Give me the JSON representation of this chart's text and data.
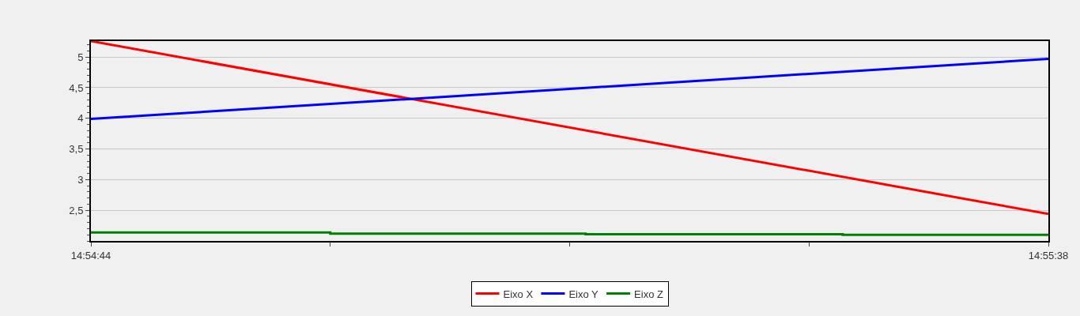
{
  "chart_data": {
    "type": "line",
    "xlim": [
      14.912222,
      14.927222
    ],
    "xticks": [
      {
        "value": 14.912222,
        "label": "14:54:44"
      },
      {
        "value": 14.915972,
        "label": null
      },
      {
        "value": 14.919722,
        "label": null
      },
      {
        "value": 14.923472,
        "label": null
      },
      {
        "value": 14.927222,
        "label": "14:55:38"
      }
    ],
    "ylim": [
      2.0,
      5.26
    ],
    "yticks": [
      {
        "value": 2.5,
        "label": "2,5"
      },
      {
        "value": 3,
        "label": "3"
      },
      {
        "value": 3.5,
        "label": "3,5"
      },
      {
        "value": 4,
        "label": "4"
      },
      {
        "value": 4.5,
        "label": "4,5"
      },
      {
        "value": 5,
        "label": "5"
      }
    ],
    "grid": "y",
    "legend": "bottom",
    "series": [
      {
        "name": "Eixo X",
        "color": "#ff0000",
        "x": [
          14.912222,
          14.927222
        ],
        "values": [
          5.26,
          2.44
        ]
      },
      {
        "name": "Eixo Y",
        "color": "#0000ff",
        "x": [
          14.912222,
          14.927222
        ],
        "values": [
          3.99,
          4.97
        ]
      },
      {
        "name": "Eixo Z",
        "color": "#008000",
        "type": "step",
        "x": [
          14.912222,
          14.915972,
          14.919972,
          14.924,
          14.927222
        ],
        "values": [
          2.14,
          2.12,
          2.11,
          2.1,
          2.1
        ]
      }
    ]
  }
}
